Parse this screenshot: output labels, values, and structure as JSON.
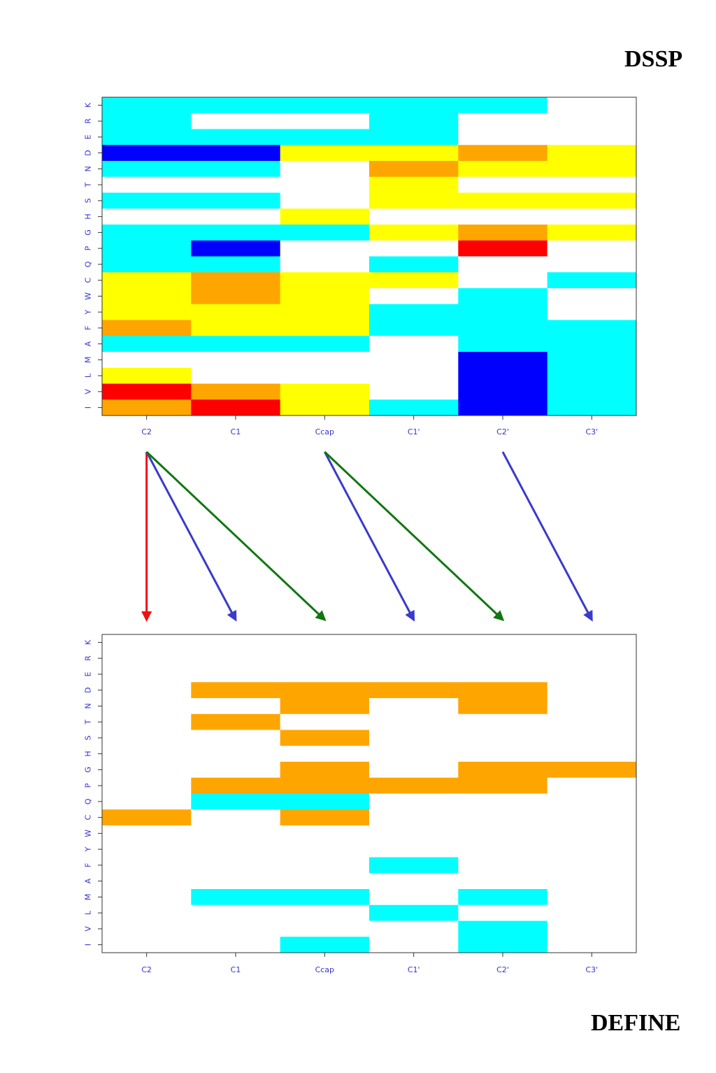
{
  "labels": {
    "top": "DSSP",
    "bottom": "DEFINE"
  },
  "palette": {
    "white": "#ffffff",
    "cyan": "#00ffff",
    "yellow": "#ffff00",
    "orange": "#ffa500",
    "red": "#ff0000",
    "blue": "#0000ff"
  },
  "chart_data": [
    {
      "type": "heatmap",
      "name": "DSSP",
      "columns": [
        "C2",
        "C1",
        "Ccap",
        "C1'",
        "C2'",
        "C3'"
      ],
      "rows": [
        "K",
        "R",
        "E",
        "D",
        "N",
        "T",
        "S",
        "H",
        "G",
        "P",
        "Q",
        "C",
        "W",
        "Y",
        "F",
        "A",
        "M",
        "L",
        "V",
        "I"
      ],
      "cells": [
        [
          "cyan",
          "cyan",
          "cyan",
          "cyan",
          "cyan",
          "white"
        ],
        [
          "cyan",
          "white",
          "white",
          "cyan",
          "white",
          "white"
        ],
        [
          "cyan",
          "cyan",
          "cyan",
          "cyan",
          "white",
          "white"
        ],
        [
          "blue",
          "blue",
          "yellow",
          "yellow",
          "orange",
          "yellow"
        ],
        [
          "cyan",
          "cyan",
          "white",
          "orange",
          "yellow",
          "yellow"
        ],
        [
          "white",
          "white",
          "white",
          "yellow",
          "white",
          "white"
        ],
        [
          "cyan",
          "cyan",
          "white",
          "yellow",
          "yellow",
          "yellow"
        ],
        [
          "white",
          "white",
          "yellow",
          "white",
          "white",
          "white"
        ],
        [
          "cyan",
          "cyan",
          "cyan",
          "yellow",
          "orange",
          "yellow"
        ],
        [
          "cyan",
          "blue",
          "white",
          "white",
          "red",
          "white"
        ],
        [
          "cyan",
          "cyan",
          "white",
          "cyan",
          "white",
          "white"
        ],
        [
          "yellow",
          "orange",
          "yellow",
          "yellow",
          "white",
          "cyan"
        ],
        [
          "yellow",
          "orange",
          "yellow",
          "white",
          "cyan",
          "white"
        ],
        [
          "yellow",
          "yellow",
          "yellow",
          "cyan",
          "cyan",
          "white"
        ],
        [
          "orange",
          "yellow",
          "yellow",
          "cyan",
          "cyan",
          "cyan"
        ],
        [
          "cyan",
          "cyan",
          "cyan",
          "white",
          "cyan",
          "cyan"
        ],
        [
          "white",
          "white",
          "white",
          "white",
          "blue",
          "cyan"
        ],
        [
          "yellow",
          "white",
          "white",
          "white",
          "blue",
          "cyan"
        ],
        [
          "red",
          "orange",
          "yellow",
          "white",
          "blue",
          "cyan"
        ],
        [
          "orange",
          "red",
          "yellow",
          "cyan",
          "blue",
          "cyan"
        ]
      ]
    },
    {
      "type": "heatmap",
      "name": "DEFINE",
      "columns": [
        "C2",
        "C1",
        "Ccap",
        "C1'",
        "C2'",
        "C3'"
      ],
      "rows": [
        "K",
        "R",
        "E",
        "D",
        "N",
        "T",
        "S",
        "H",
        "G",
        "P",
        "Q",
        "C",
        "W",
        "Y",
        "F",
        "A",
        "M",
        "L",
        "V",
        "I"
      ],
      "cells": [
        [
          "white",
          "white",
          "white",
          "white",
          "white",
          "white"
        ],
        [
          "white",
          "white",
          "white",
          "white",
          "white",
          "white"
        ],
        [
          "white",
          "white",
          "white",
          "white",
          "white",
          "white"
        ],
        [
          "white",
          "orange",
          "orange",
          "orange",
          "orange",
          "white"
        ],
        [
          "white",
          "white",
          "orange",
          "white",
          "orange",
          "white"
        ],
        [
          "white",
          "orange",
          "white",
          "white",
          "white",
          "white"
        ],
        [
          "white",
          "white",
          "orange",
          "white",
          "white",
          "white"
        ],
        [
          "white",
          "white",
          "white",
          "white",
          "white",
          "white"
        ],
        [
          "white",
          "white",
          "orange",
          "white",
          "orange",
          "orange"
        ],
        [
          "white",
          "orange",
          "orange",
          "orange",
          "orange",
          "white"
        ],
        [
          "white",
          "cyan",
          "cyan",
          "white",
          "white",
          "white"
        ],
        [
          "orange",
          "white",
          "orange",
          "white",
          "white",
          "white"
        ],
        [
          "white",
          "white",
          "white",
          "white",
          "white",
          "white"
        ],
        [
          "white",
          "white",
          "white",
          "white",
          "white",
          "white"
        ],
        [
          "white",
          "white",
          "white",
          "cyan",
          "white",
          "white"
        ],
        [
          "white",
          "white",
          "white",
          "white",
          "white",
          "white"
        ],
        [
          "white",
          "cyan",
          "cyan",
          "white",
          "cyan",
          "white"
        ],
        [
          "white",
          "white",
          "white",
          "cyan",
          "white",
          "white"
        ],
        [
          "white",
          "white",
          "white",
          "white",
          "cyan",
          "white"
        ],
        [
          "white",
          "white",
          "cyan",
          "white",
          "cyan",
          "white"
        ]
      ]
    }
  ],
  "arrows": [
    {
      "from": "C2",
      "to": "C2",
      "color": "#ee1111"
    },
    {
      "from": "C2",
      "to": "C1",
      "color": "#3a3acc"
    },
    {
      "from": "C2",
      "to": "Ccap",
      "color": "#117711"
    },
    {
      "from": "Ccap",
      "to": "C1'",
      "color": "#3a3acc"
    },
    {
      "from": "Ccap",
      "to": "C2'",
      "color": "#117711"
    },
    {
      "from": "C2'",
      "to": "C3'",
      "color": "#3a3acc"
    }
  ]
}
